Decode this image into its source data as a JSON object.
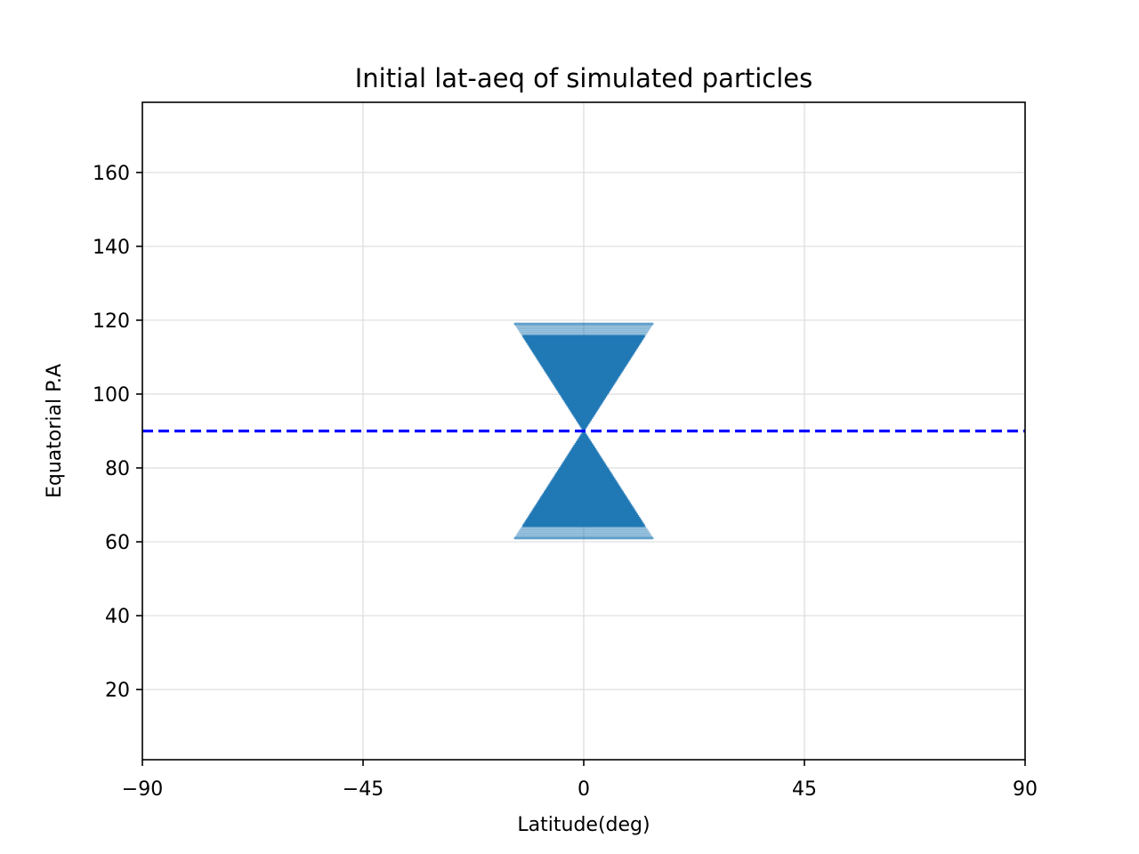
{
  "chart_data": {
    "type": "scatter",
    "title": "Initial lat-aeq of simulated particles",
    "xlabel": "Latitude(deg)",
    "ylabel": "Equatorial P.A",
    "xlim": [
      -90,
      90
    ],
    "ylim": [
      1,
      179
    ],
    "xticks": [
      -90,
      -45,
      0,
      45,
      90
    ],
    "xtick_labels": [
      "−90",
      "−45",
      "0",
      "45",
      "90"
    ],
    "yticks": [
      20,
      40,
      60,
      80,
      100,
      120,
      140,
      160
    ],
    "ytick_labels": [
      "20",
      "40",
      "60",
      "80",
      "100",
      "120",
      "140",
      "160"
    ],
    "grid": true,
    "series": [
      {
        "color": "#1f77b4",
        "description": "particles: each equatorial pitch angle spans latitude range symmetric about 0",
        "aeq_min": 61,
        "aeq_max": 119,
        "lat_at_extreme": 14,
        "apex": [
          0,
          90
        ]
      }
    ],
    "reference_line": {
      "y": 90,
      "style": "dashed",
      "color": "#0000ff"
    },
    "colors": {
      "points": "#1f77b4",
      "reference": "#0000ff",
      "grid": "#dddddd"
    }
  }
}
